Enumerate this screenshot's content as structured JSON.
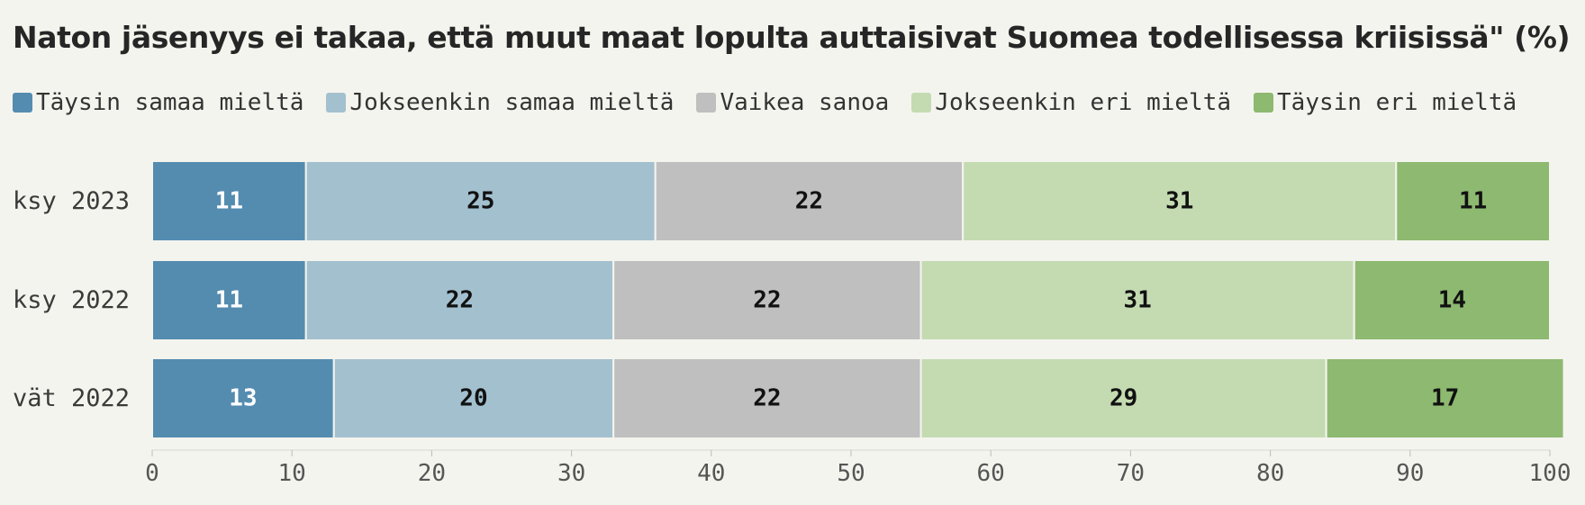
{
  "chart_data": {
    "type": "bar",
    "orientation": "horizontal",
    "stacked": true,
    "title": "Naton jäsenyys ei takaa, että muut maat lopulta auttaisivat Suomea todellisessa kriisissä\" (%)",
    "categories": [
      "ksy 2023",
      "ksy 2022",
      "vät 2022"
    ],
    "series": [
      {
        "name": "Täysin samaa mieltä",
        "color": "#548cb0",
        "label_color": "#ffffff",
        "values": [
          11,
          11,
          13
        ]
      },
      {
        "name": "Jokseenkin samaa mieltä",
        "color": "#a3c0cf",
        "label_color": "#111111",
        "values": [
          25,
          22,
          20
        ]
      },
      {
        "name": "Vaikea sanoa",
        "color": "#bfbfbf",
        "label_color": "#111111",
        "values": [
          22,
          22,
          22
        ]
      },
      {
        "name": "Jokseenkin eri mieltä",
        "color": "#c4dbb2",
        "label_color": "#111111",
        "values": [
          31,
          31,
          29
        ]
      },
      {
        "name": "Täysin eri mieltä",
        "color": "#8db970",
        "label_color": "#111111",
        "values": [
          11,
          14,
          17
        ]
      }
    ],
    "xlim": [
      0,
      100
    ],
    "xticks": [
      0,
      10,
      20,
      30,
      40,
      50,
      60,
      70,
      80,
      90,
      100
    ],
    "legend_position": "top",
    "grid": false
  }
}
